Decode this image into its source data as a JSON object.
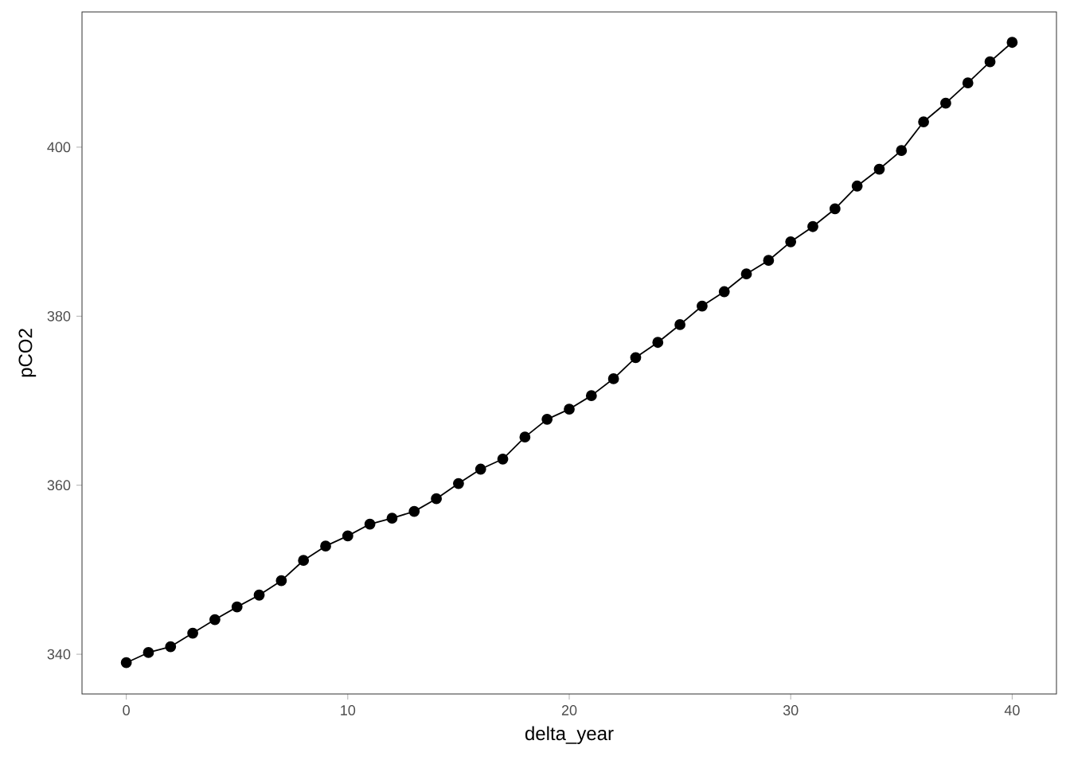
{
  "chart_data": {
    "type": "line",
    "xlabel": "delta_year",
    "ylabel": "pCO2",
    "x": [
      0,
      1,
      2,
      3,
      4,
      5,
      6,
      7,
      8,
      9,
      10,
      11,
      12,
      13,
      14,
      15,
      16,
      17,
      18,
      19,
      20,
      21,
      22,
      23,
      24,
      25,
      26,
      27,
      28,
      29,
      30,
      31,
      32,
      33,
      34,
      35,
      36,
      37,
      38,
      39,
      40
    ],
    "series": [
      {
        "color": "#000000",
        "values": [
          339.0,
          340.2,
          340.9,
          342.5,
          344.1,
          345.6,
          347.0,
          348.7,
          351.1,
          352.8,
          354.0,
          355.4,
          356.1,
          356.9,
          358.4,
          360.2,
          361.9,
          363.1,
          365.7,
          367.8,
          369.0,
          370.6,
          372.6,
          375.1,
          376.9,
          379.0,
          381.2,
          382.9,
          385.0,
          386.6,
          388.8,
          390.6,
          392.7,
          395.4,
          397.4,
          399.6,
          403.0,
          405.2,
          407.6,
          410.1,
          412.4
        ]
      }
    ],
    "xlim": [
      -2,
      42
    ],
    "ylim": [
      335.3,
      416
    ],
    "xticks": [
      0,
      10,
      20,
      30,
      40
    ],
    "yticks": [
      340,
      360,
      380,
      400
    ],
    "grid": false,
    "marker": "circle",
    "line_style": "solid"
  }
}
